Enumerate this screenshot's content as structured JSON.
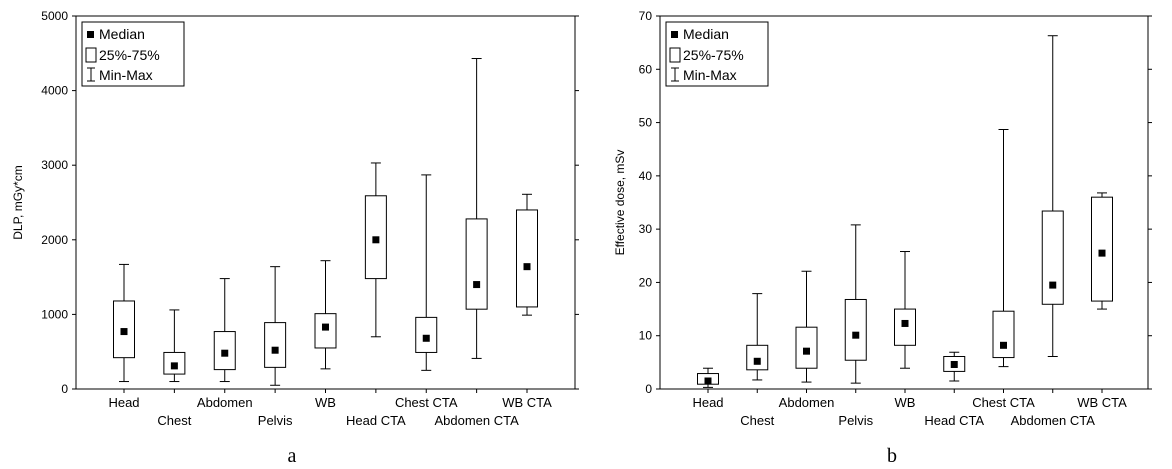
{
  "chart_data": [
    {
      "type": "box",
      "panel_label": "a",
      "ylabel": "DLP, mGy*cm",
      "xlabel": "",
      "ylim": [
        0,
        5000
      ],
      "yticks": [
        0,
        1000,
        2000,
        3000,
        4000,
        5000
      ],
      "grid": false,
      "legend": {
        "position": "top-left",
        "entries": [
          "Median",
          "25%-75%",
          "Min-Max"
        ]
      },
      "categories": [
        "Head",
        "Chest",
        "Abdomen",
        "Pelvis",
        "WB",
        "Head CTA",
        "Chest CTA",
        "Abdomen CTA",
        "WB CTA"
      ],
      "label_rows": [
        0,
        1,
        0,
        1,
        0,
        1,
        0,
        1,
        0
      ],
      "boxes": [
        {
          "min": 100,
          "q1": 420,
          "median": 770,
          "q3": 1180,
          "max": 1670
        },
        {
          "min": 100,
          "q1": 200,
          "median": 310,
          "q3": 490,
          "max": 1060
        },
        {
          "min": 100,
          "q1": 260,
          "median": 480,
          "q3": 770,
          "max": 1480
        },
        {
          "min": 50,
          "q1": 290,
          "median": 520,
          "q3": 890,
          "max": 1640
        },
        {
          "min": 270,
          "q1": 550,
          "median": 830,
          "q3": 1010,
          "max": 1720
        },
        {
          "min": 700,
          "q1": 1480,
          "median": 2000,
          "q3": 2590,
          "max": 3030
        },
        {
          "min": 250,
          "q1": 490,
          "median": 680,
          "q3": 960,
          "max": 2870
        },
        {
          "min": 410,
          "q1": 1070,
          "median": 1400,
          "q3": 2280,
          "max": 4430
        },
        {
          "min": 990,
          "q1": 1100,
          "median": 1640,
          "q3": 2400,
          "max": 2610
        }
      ]
    },
    {
      "type": "box",
      "panel_label": "b",
      "ylabel": "Effective dose, mSv",
      "xlabel": "",
      "ylim": [
        0,
        70
      ],
      "yticks": [
        0,
        10,
        20,
        30,
        40,
        50,
        60,
        70
      ],
      "grid": false,
      "legend": {
        "position": "top-left",
        "entries": [
          "Median",
          "25%-75%",
          "Min-Max"
        ]
      },
      "categories": [
        "Head",
        "Chest",
        "Abdomen",
        "Pelvis",
        "WB",
        "Head CTA",
        "Chest CTA",
        "Abdomen CTA",
        "WB CTA"
      ],
      "label_rows": [
        0,
        1,
        0,
        1,
        0,
        1,
        0,
        1,
        0
      ],
      "boxes": [
        {
          "min": 0.3,
          "q1": 0.9,
          "median": 1.5,
          "q3": 2.9,
          "max": 3.9
        },
        {
          "min": 1.7,
          "q1": 3.6,
          "median": 5.2,
          "q3": 8.2,
          "max": 17.9
        },
        {
          "min": 1.3,
          "q1": 3.9,
          "median": 7.1,
          "q3": 11.6,
          "max": 22.1
        },
        {
          "min": 1.1,
          "q1": 5.4,
          "median": 10.1,
          "q3": 16.8,
          "max": 30.8
        },
        {
          "min": 3.9,
          "q1": 8.2,
          "median": 12.3,
          "q3": 15.0,
          "max": 25.8
        },
        {
          "min": 1.5,
          "q1": 3.3,
          "median": 4.6,
          "q3": 6.1,
          "max": 6.9
        },
        {
          "min": 4.2,
          "q1": 5.9,
          "median": 8.2,
          "q3": 14.6,
          "max": 48.7
        },
        {
          "min": 6.1,
          "q1": 15.9,
          "median": 19.5,
          "q3": 33.4,
          "max": 66.3
        },
        {
          "min": 15.0,
          "q1": 16.5,
          "median": 25.5,
          "q3": 36.0,
          "max": 36.8
        }
      ]
    }
  ]
}
